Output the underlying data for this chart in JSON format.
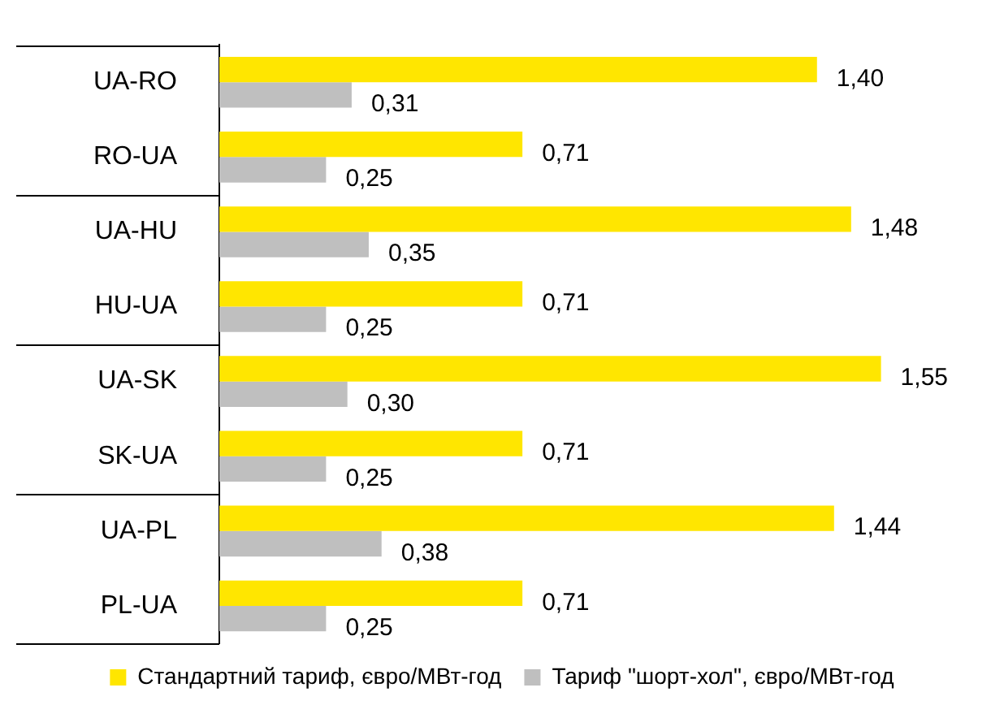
{
  "chart_data": {
    "type": "bar",
    "orientation": "horizontal",
    "categories": [
      "UA-RO",
      "RO-UA",
      "UA-HU",
      "HU-UA",
      "UA-SK",
      "SK-UA",
      "UA-PL",
      "PL-UA"
    ],
    "series": [
      {
        "name": "Стандартний тариф, євро/МВт-год",
        "color": "#ffe600",
        "values": [
          1.4,
          0.71,
          1.48,
          0.71,
          1.55,
          0.71,
          1.44,
          0.71
        ],
        "value_labels": [
          "1,40",
          "0,71",
          "1,48",
          "0,71",
          "1,55",
          "0,71",
          "1,44",
          "0,71"
        ]
      },
      {
        "name": "Тариф \"шорт-хол\", євро/МВт-год",
        "color": "#bfbfbf",
        "values": [
          0.31,
          0.25,
          0.35,
          0.25,
          0.3,
          0.25,
          0.38,
          0.25
        ],
        "value_labels": [
          "0,31",
          "0,25",
          "0,35",
          "0,25",
          "0,30",
          "0,25",
          "0,38",
          "0,25"
        ]
      }
    ],
    "tick_labels": "y",
    "legend": "bottom"
  }
}
